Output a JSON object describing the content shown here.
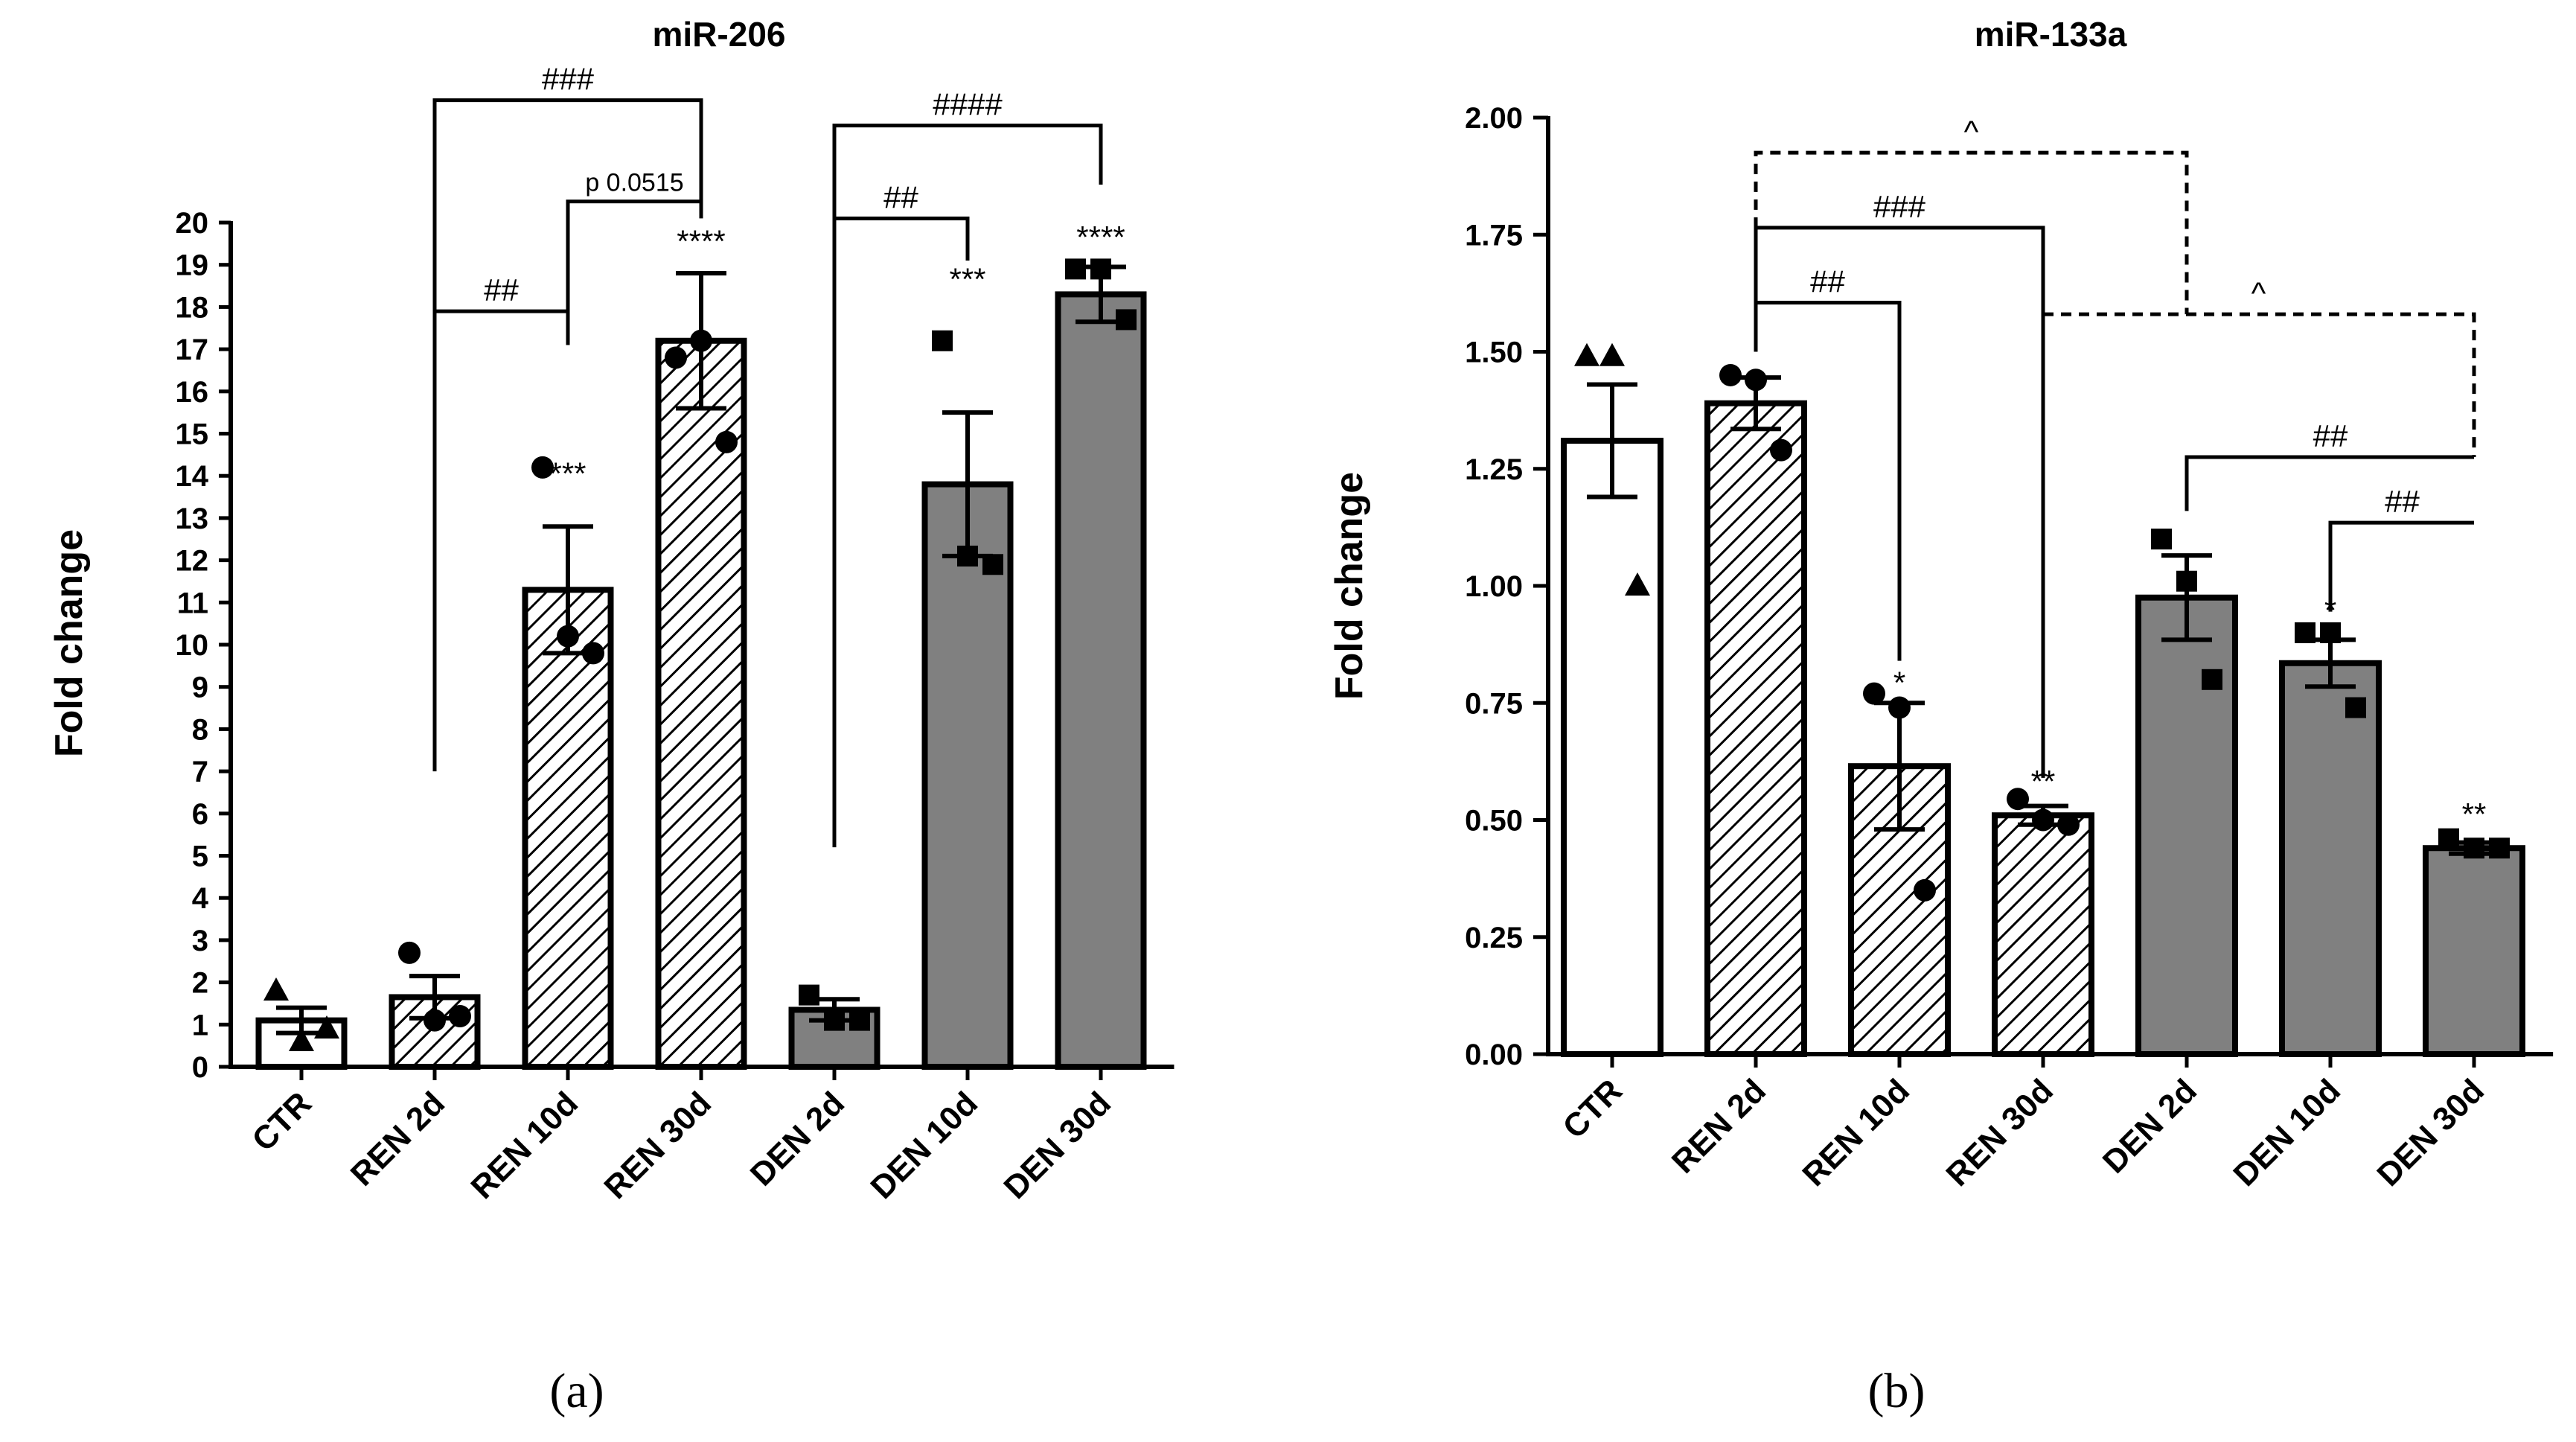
{
  "chart_data": [
    {
      "type": "bar",
      "panel_label": "(a)",
      "title": "miR-206",
      "ylabel": "Fold change",
      "xlabel": "",
      "ylim": [
        0,
        20
      ],
      "yticks": [
        0,
        1,
        2,
        3,
        4,
        5,
        6,
        7,
        8,
        9,
        10,
        11,
        12,
        13,
        14,
        15,
        16,
        17,
        18,
        19,
        20
      ],
      "ytick_labels": [
        "0",
        "1",
        "2",
        "3",
        "4",
        "5",
        "6",
        "7",
        "8",
        "9",
        "10",
        "11",
        "12",
        "13",
        "14",
        "15",
        "16",
        "17",
        "18",
        "19",
        "20"
      ],
      "categories": [
        "CTR",
        "REN 2d",
        "REN 10d",
        "REN 30d",
        "DEN 2d",
        "DEN 10d",
        "DEN 30d"
      ],
      "values": [
        1.1,
        1.65,
        11.3,
        17.2,
        1.35,
        13.8,
        18.3
      ],
      "errors": [
        0.3,
        0.5,
        1.5,
        1.6,
        0.25,
        1.7,
        0.65
      ],
      "fills": [
        "white",
        "hatch",
        "hatch",
        "hatch",
        "gray",
        "gray",
        "gray"
      ],
      "points": [
        {
          "marker": "triangle",
          "values": [
            1.8,
            0.6,
            0.9
          ]
        },
        {
          "marker": "circle",
          "values": [
            2.7,
            1.1,
            1.2
          ]
        },
        {
          "marker": "circle",
          "values": [
            14.2,
            10.2,
            9.8
          ]
        },
        {
          "marker": "circle",
          "values": [
            16.8,
            17.2,
            14.8
          ]
        },
        {
          "marker": "square",
          "values": [
            1.7,
            1.1,
            1.1
          ]
        },
        {
          "marker": "square",
          "values": [
            17.2,
            12.1,
            11.9
          ]
        },
        {
          "marker": "square",
          "values": [
            18.9,
            18.9,
            17.7
          ]
        }
      ],
      "stars": [
        "",
        "",
        "***",
        "****",
        "",
        "***",
        "****"
      ],
      "star_levels": [
        0,
        0,
        13.8,
        19.3,
        0,
        18.4,
        19.4
      ],
      "brackets": [
        {
          "from": 1,
          "to": 2,
          "y": 17.9,
          "left_drop": 7.0,
          "right_drop": 17.1,
          "label": "##",
          "dashed": false,
          "small": false
        },
        {
          "from": 2,
          "to": 3,
          "y": 20.5,
          "left_drop": 17.1,
          "right_drop": 20.1,
          "label": "p 0.0515",
          "dashed": false,
          "small": true
        },
        {
          "from": 1,
          "to": 3,
          "y": 22.9,
          "left_drop": 17.9,
          "right_drop": 20.5,
          "label": "###",
          "dashed": false,
          "small": false
        },
        {
          "from": 4,
          "to": 5,
          "y": 20.1,
          "left_drop": 5.2,
          "right_drop": 19.1,
          "label": "##",
          "dashed": false,
          "small": false
        },
        {
          "from": 4,
          "to": 6,
          "y": 22.3,
          "left_drop": 20.1,
          "right_drop": 20.9,
          "label": "####",
          "dashed": false,
          "small": false
        }
      ]
    },
    {
      "type": "bar",
      "panel_label": "(b)",
      "title": "miR-133a",
      "ylabel": "Fold change",
      "xlabel": "",
      "ylim": [
        0,
        2
      ],
      "yticks": [
        0,
        0.25,
        0.5,
        0.75,
        1,
        1.25,
        1.5,
        1.75,
        2
      ],
      "ytick_labels": [
        "0.00",
        "0.25",
        "0.50",
        "0.75",
        "1.00",
        "1.25",
        "1.50",
        "1.75",
        "2.00"
      ],
      "categories": [
        "CTR",
        "REN 2d",
        "REN 10d",
        "REN 30d",
        "DEN 2d",
        "DEN 10d",
        "DEN 30d"
      ],
      "values": [
        1.31,
        1.39,
        0.615,
        0.51,
        0.975,
        0.835,
        0.44
      ],
      "errors": [
        0.12,
        0.055,
        0.135,
        0.02,
        0.09,
        0.05,
        0.012
      ],
      "fills": [
        "white",
        "hatch",
        "hatch",
        "hatch",
        "gray",
        "gray",
        "gray"
      ],
      "points": [
        {
          "marker": "triangle",
          "values": [
            1.49,
            1.49,
            1.0
          ]
        },
        {
          "marker": "circle",
          "values": [
            1.45,
            1.44,
            1.29
          ]
        },
        {
          "marker": "circle",
          "values": [
            0.77,
            0.74,
            0.35
          ]
        },
        {
          "marker": "circle",
          "values": [
            0.545,
            0.5,
            0.49
          ]
        },
        {
          "marker": "square",
          "values": [
            1.1,
            1.01,
            0.8
          ]
        },
        {
          "marker": "square",
          "values": [
            0.9,
            0.9,
            0.74
          ]
        },
        {
          "marker": "square",
          "values": [
            0.46,
            0.44,
            0.44
          ]
        }
      ],
      "stars": [
        "",
        "",
        "*",
        "**",
        "",
        "*",
        "**"
      ],
      "star_levels": [
        0,
        0,
        0.77,
        0.56,
        0,
        0.925,
        0.49
      ],
      "brackets": [
        {
          "from": 1,
          "to": 2,
          "y": 1.605,
          "left_drop": 1.5,
          "right_drop": 0.84,
          "label": "##",
          "dashed": false,
          "small": false
        },
        {
          "from": 1,
          "to": 3,
          "y": 1.765,
          "left_drop": 1.605,
          "right_drop": 0.59,
          "label": "###",
          "dashed": false,
          "small": false
        },
        {
          "from": 1,
          "to": 4,
          "y": 1.925,
          "left_drop": 1.765,
          "right_drop": 1.58,
          "label": "^",
          "dashed": true,
          "small": false
        },
        {
          "from": 3,
          "to": 6,
          "y": 1.58,
          "left_drop": 1.58,
          "right_drop": 1.275,
          "label": "^",
          "dashed": true,
          "small": false
        },
        {
          "from": 4,
          "to": 6,
          "y": 1.275,
          "left_drop": 1.16,
          "right_drop": 1.275,
          "label": "##",
          "dashed": false,
          "small": false
        },
        {
          "from": 5,
          "to": 6,
          "y": 1.135,
          "left_drop": 0.945,
          "right_drop": 1.135,
          "label": "##",
          "dashed": false,
          "small": false
        }
      ]
    }
  ]
}
